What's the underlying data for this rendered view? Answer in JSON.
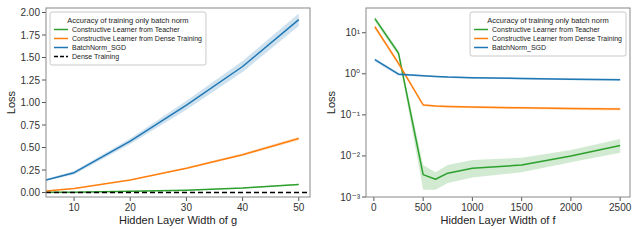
{
  "chart_data": [
    {
      "type": "line",
      "title": "Accuracy of training only batch norm",
      "x_label": "Hidden Layer Width of g",
      "y_label": "Loss",
      "xlim": [
        5,
        52
      ],
      "ylim": [
        -0.05,
        2.05
      ],
      "xticks": [
        10,
        20,
        30,
        40,
        50
      ],
      "yticks": [
        {
          "value": 0.0,
          "label": "0.00"
        },
        0.25,
        {
          "value": 0.5,
          "label": "0.50"
        },
        0.75,
        {
          "value": 1.0,
          "label": "1.00"
        },
        1.25,
        {
          "value": 1.5,
          "label": "1.50"
        },
        1.75,
        {
          "value": 2.0,
          "label": "2.00"
        }
      ],
      "legend": "upper left",
      "series": [
        {
          "name": "Constructive Learner from Teacher",
          "color": "#2ca02c",
          "x": [
            5,
            10,
            20,
            30,
            40,
            50
          ],
          "values": [
            0.002,
            0.004,
            0.013,
            0.025,
            0.05,
            0.09
          ],
          "lower": [
            0.001,
            0.003,
            0.011,
            0.022,
            0.045,
            0.082
          ],
          "upper": [
            0.003,
            0.005,
            0.015,
            0.028,
            0.055,
            0.098
          ]
        },
        {
          "name": "Constructive Learner from Dense Training",
          "color": "#ff7f0e",
          "x": [
            5,
            10,
            20,
            30,
            40,
            50
          ],
          "values": [
            0.018,
            0.045,
            0.14,
            0.27,
            0.42,
            0.6
          ],
          "lower": [
            0.016,
            0.042,
            0.135,
            0.26,
            0.405,
            0.58
          ],
          "upper": [
            0.02,
            0.048,
            0.145,
            0.28,
            0.435,
            0.62
          ]
        },
        {
          "name": "BatchNorm_SGD",
          "color": "#1f77b4",
          "x": [
            5,
            10,
            20,
            30,
            40,
            50
          ],
          "values": [
            0.14,
            0.22,
            0.57,
            0.97,
            1.4,
            1.92
          ],
          "lower": [
            0.13,
            0.2,
            0.54,
            0.92,
            1.34,
            1.85
          ],
          "upper": [
            0.15,
            0.24,
            0.6,
            1.02,
            1.46,
            1.99
          ]
        },
        {
          "name": "Dense Training",
          "color": "black",
          "line_style": "dashed",
          "x": [
            5,
            52
          ],
          "values": [
            0.0,
            0.0
          ]
        }
      ]
    },
    {
      "type": "line",
      "title": "Accuracy of training only batch norm",
      "x_label": "Hidden Layer Width of f",
      "y_label": "Loss",
      "log": "y",
      "xlim": [
        -80,
        2600
      ],
      "ylim": [
        0.001,
        40.0
      ],
      "xticks": [
        0,
        500,
        1000,
        1500,
        2000,
        2500
      ],
      "yticks": [
        {
          "value": 0.001,
          "label": "10⁻³"
        },
        {
          "value": 0.01,
          "label": "10⁻²"
        },
        {
          "value": 0.1,
          "label": "10⁻¹"
        },
        {
          "value": 1,
          "label": "10⁰"
        },
        {
          "value": 10,
          "label": "10¹"
        }
      ],
      "legend": "upper right",
      "series": [
        {
          "name": "Constructive Learner from Teacher",
          "color": "#2ca02c",
          "x": [
            10,
            250,
            500,
            625,
            750,
            1000,
            1500,
            2000,
            2500
          ],
          "values": [
            22.0,
            3.2,
            0.0035,
            0.0027,
            0.0038,
            0.005,
            0.006,
            0.01,
            0.018
          ],
          "lower": [
            19.0,
            2.7,
            0.0015,
            0.0015,
            0.0022,
            0.003,
            0.004,
            0.007,
            0.012
          ],
          "upper": [
            25.0,
            3.7,
            0.006,
            0.004,
            0.006,
            0.008,
            0.009,
            0.014,
            0.026
          ]
        },
        {
          "name": "Constructive Learner from Dense Training",
          "color": "#ff7f0e",
          "x": [
            10,
            250,
            500,
            625,
            750,
            1000,
            1500,
            2000,
            2500
          ],
          "values": [
            14.0,
            1.8,
            0.175,
            0.165,
            0.16,
            0.155,
            0.148,
            0.142,
            0.138
          ],
          "lower": [
            12.5,
            1.6,
            0.165,
            0.155,
            0.15,
            0.145,
            0.138,
            0.132,
            0.128
          ],
          "upper": [
            15.5,
            2.0,
            0.185,
            0.175,
            0.17,
            0.165,
            0.158,
            0.152,
            0.148
          ]
        },
        {
          "name": "BatchNorm_SGD",
          "color": "#1f77b4",
          "x": [
            10,
            250,
            500,
            625,
            750,
            1000,
            1500,
            2000,
            2500
          ],
          "values": [
            2.2,
            0.98,
            0.9,
            0.86,
            0.83,
            0.8,
            0.77,
            0.74,
            0.72
          ],
          "lower": [
            2.0,
            0.9,
            0.86,
            0.82,
            0.79,
            0.76,
            0.73,
            0.7,
            0.68
          ],
          "upper": [
            2.4,
            1.06,
            0.94,
            0.9,
            0.87,
            0.84,
            0.81,
            0.78,
            0.76
          ]
        }
      ]
    }
  ]
}
